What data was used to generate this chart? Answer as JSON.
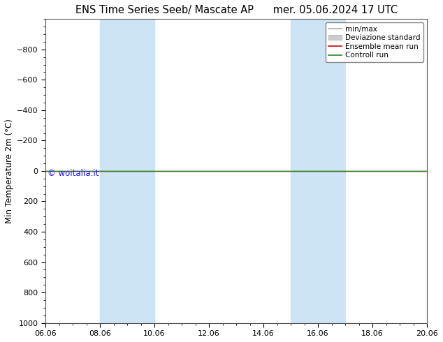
{
  "title_left": "ENS Time Series Seeb/ Mascate AP",
  "title_right": "mer. 05.06.2024 17 UTC",
  "ylabel": "Min Temperature 2m (°C)",
  "ylim_bottom": 1000,
  "ylim_top": -1000,
  "yticks": [
    -800,
    -600,
    -400,
    -200,
    0,
    200,
    400,
    600,
    800,
    1000
  ],
  "xtick_labels": [
    "06.06",
    "08.06",
    "10.06",
    "12.06",
    "14.06",
    "16.06",
    "18.06",
    "20.06"
  ],
  "xtick_positions": [
    0,
    2,
    4,
    6,
    8,
    10,
    12,
    14
  ],
  "xlim_start": 0,
  "xlim_end": 14,
  "shaded_bands": [
    {
      "xstart": 2,
      "xend": 4
    },
    {
      "xstart": 9,
      "xend": 11
    }
  ],
  "shaded_color": "#cde4f5",
  "hline_y": 0,
  "hline_color_green": "#228B22",
  "hline_color_red": "#cc0000",
  "watermark": "© woitalia.it",
  "watermark_color": "#1a1aff",
  "legend_entries": [
    {
      "label": "min/max",
      "color": "#aaaaaa",
      "lw": 1.2,
      "style": "solid"
    },
    {
      "label": "Deviazione standard",
      "color": "#cccccc",
      "lw": 5,
      "style": "solid"
    },
    {
      "label": "Ensemble mean run",
      "color": "#cc0000",
      "lw": 1.2,
      "style": "solid"
    },
    {
      "label": "Controll run",
      "color": "#228B22",
      "lw": 1.2,
      "style": "solid"
    }
  ],
  "bg_color": "#ffffff",
  "plot_bg_color": "#ffffff",
  "border_color": "#555555",
  "title_fontsize": 10.5,
  "ylabel_fontsize": 8.5,
  "tick_fontsize": 8,
  "watermark_fontsize": 8.5,
  "legend_fontsize": 7.5
}
